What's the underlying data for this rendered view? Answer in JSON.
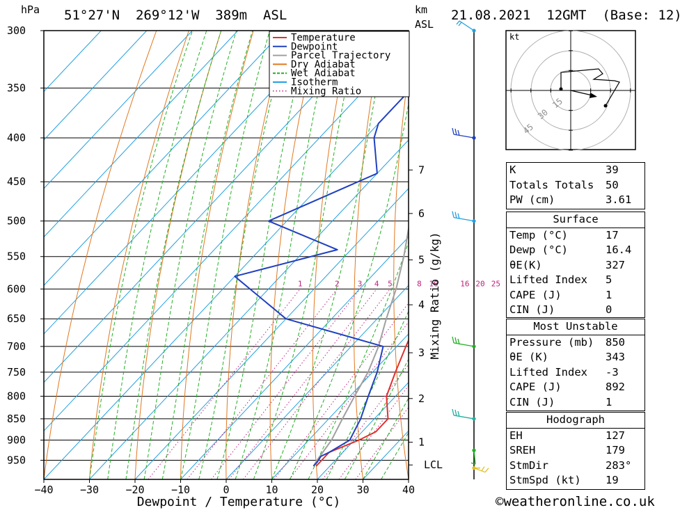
{
  "header": {
    "units_left": "hPa",
    "location": "51°27'N  269°12'W  389m  ASL",
    "units_km": "km",
    "units_asl": "ASL",
    "datetime": "21.08.2021  12GMT  (Base: 12)"
  },
  "legend": [
    {
      "label": "Temperature",
      "color": "#e03030",
      "style": "solid"
    },
    {
      "label": "Dewpoint",
      "color": "#2040c0",
      "style": "solid"
    },
    {
      "label": "Parcel Trajectory",
      "color": "#a0a0a0",
      "style": "solid"
    },
    {
      "label": "Dry Adiabat",
      "color": "#e07820",
      "style": "solid"
    },
    {
      "label": "Wet Adiabat",
      "color": "#20b020",
      "style": "dashed"
    },
    {
      "label": "Isotherm",
      "color": "#20a0e0",
      "style": "solid"
    },
    {
      "label": "Mixing Ratio",
      "color": "#c02080",
      "style": "dotted"
    }
  ],
  "chart_data": {
    "type": "line",
    "xlabel": "Dewpoint / Temperature (°C)",
    "ylabel_right": "Mixing Ratio (g/kg)",
    "x_ticks": [
      -40,
      -30,
      -20,
      -10,
      0,
      10,
      20,
      30,
      40
    ],
    "pressure_ticks": [
      300,
      350,
      400,
      450,
      500,
      550,
      600,
      650,
      700,
      750,
      800,
      850,
      900,
      950
    ],
    "km_ticks": [
      {
        "label": "7",
        "p": 436
      },
      {
        "label": "6",
        "p": 490
      },
      {
        "label": "5",
        "p": 555
      },
      {
        "label": "4",
        "p": 626
      },
      {
        "label": "3",
        "p": 712
      },
      {
        "label": "2",
        "p": 805
      },
      {
        "label": "1",
        "p": 905
      },
      {
        "label": "LCL",
        "p": 962
      }
    ],
    "mixing_ratio_labels": [
      "1",
      "2",
      "3",
      "4",
      "5",
      "8",
      "10",
      "16",
      "20",
      "25"
    ],
    "temperature": [
      [
        300,
        -33
      ],
      [
        350,
        -25
      ],
      [
        400,
        -18
      ],
      [
        450,
        -11
      ],
      [
        500,
        -5
      ],
      [
        550,
        1
      ],
      [
        600,
        5
      ],
      [
        650,
        9
      ],
      [
        700,
        12
      ],
      [
        750,
        15
      ],
      [
        800,
        18
      ],
      [
        850,
        23
      ],
      [
        880,
        23
      ],
      [
        900,
        21
      ],
      [
        930,
        17
      ],
      [
        950,
        17
      ],
      [
        965,
        17
      ]
    ],
    "dewpoint": [
      [
        300,
        -42
      ],
      [
        350,
        -40
      ],
      [
        385,
        -40
      ],
      [
        400,
        -38
      ],
      [
        440,
        -30
      ],
      [
        500,
        -44
      ],
      [
        540,
        -23
      ],
      [
        580,
        -40
      ],
      [
        650,
        -20
      ],
      [
        700,
        7
      ],
      [
        750,
        11
      ],
      [
        800,
        14
      ],
      [
        850,
        17
      ],
      [
        900,
        19
      ],
      [
        930,
        17
      ],
      [
        940,
        16
      ],
      [
        955,
        16.4
      ],
      [
        965,
        16.4
      ]
    ],
    "parcel": [
      [
        300,
        -42
      ],
      [
        350,
        -34
      ],
      [
        400,
        -26
      ],
      [
        450,
        -19
      ],
      [
        500,
        -13
      ],
      [
        550,
        -7
      ],
      [
        600,
        -2
      ],
      [
        650,
        2
      ],
      [
        700,
        6
      ],
      [
        750,
        9
      ],
      [
        800,
        11
      ],
      [
        850,
        13
      ],
      [
        900,
        15
      ],
      [
        950,
        16
      ],
      [
        965,
        16.4
      ]
    ],
    "wind_barbs_p": [
      300,
      400,
      500,
      700,
      850,
      925,
      970
    ]
  },
  "hodograph": {
    "unit": "kt",
    "ring_labels": [
      "15",
      "30",
      "45"
    ]
  },
  "indices": [
    {
      "label": "K",
      "value": "39"
    },
    {
      "label": "Totals Totals",
      "value": "50"
    },
    {
      "label": "PW (cm)",
      "value": "3.61"
    }
  ],
  "surface": {
    "title": "Surface",
    "rows": [
      {
        "label": "Temp (°C)",
        "value": "17"
      },
      {
        "label": "Dewp (°C)",
        "value": "16.4"
      },
      {
        "label": "θE(K)",
        "value": "327"
      },
      {
        "label": "Lifted Index",
        "value": "5"
      },
      {
        "label": "CAPE (J)",
        "value": "1"
      },
      {
        "label": "CIN (J)",
        "value": "0"
      }
    ]
  },
  "most_unstable": {
    "title": "Most Unstable",
    "rows": [
      {
        "label": "Pressure (mb)",
        "value": "850"
      },
      {
        "label": "θE (K)",
        "value": "343"
      },
      {
        "label": "Lifted Index",
        "value": "-3"
      },
      {
        "label": "CAPE (J)",
        "value": "892"
      },
      {
        "label": "CIN (J)",
        "value": "1"
      }
    ]
  },
  "hodograph_table": {
    "title": "Hodograph",
    "rows": [
      {
        "label": "EH",
        "value": "127"
      },
      {
        "label": "SREH",
        "value": "179"
      },
      {
        "label": "StmDir",
        "value": "283°"
      },
      {
        "label": "StmSpd (kt)",
        "value": "19"
      }
    ]
  },
  "footer": "©weatheronline.co.uk"
}
